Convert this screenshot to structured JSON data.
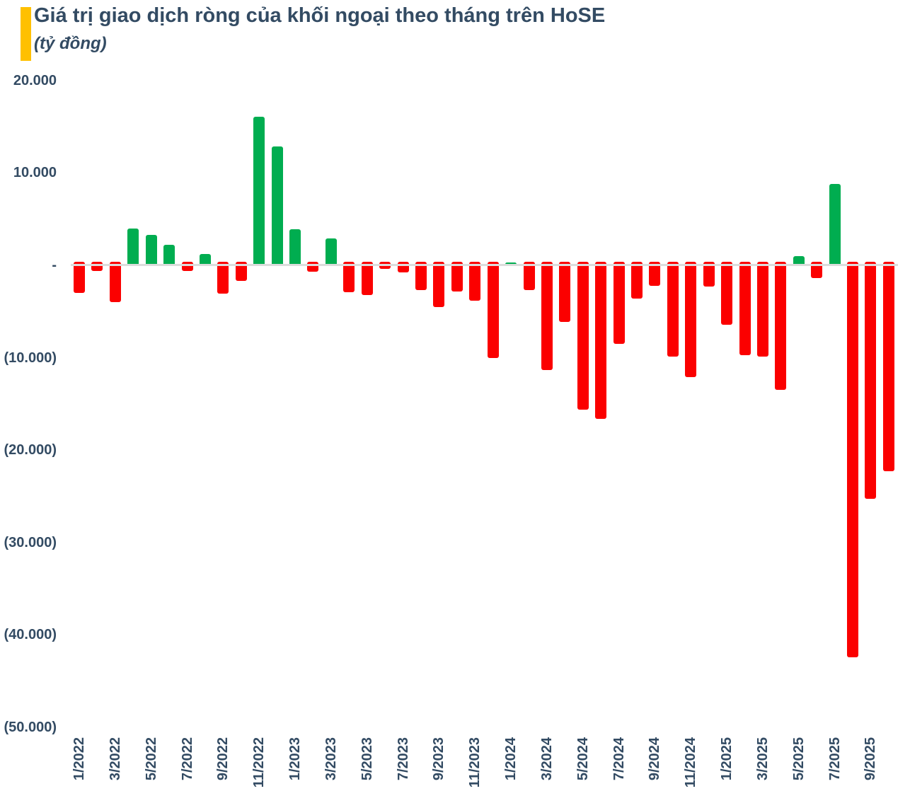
{
  "header": {
    "title": "Giá trị giao dịch ròng của khối ngoại theo tháng trên HoSE",
    "subtitle": "(tỷ đồng)",
    "accent_color": "#FFC000",
    "text_color": "#334B63"
  },
  "chart_data": {
    "type": "bar",
    "title": "Giá trị giao dịch ròng của khối ngoại theo tháng trên HoSE",
    "unit_label": "(tỷ đồng)",
    "categories": [
      "1/2022",
      "2/2022",
      "3/2022",
      "4/2022",
      "5/2022",
      "6/2022",
      "7/2022",
      "8/2022",
      "9/2022",
      "10/2022",
      "11/2022",
      "12/2022",
      "1/2023",
      "2/2023",
      "3/2023",
      "4/2023",
      "5/2023",
      "6/2023",
      "7/2023",
      "8/2023",
      "9/2023",
      "10/2023",
      "11/2023",
      "12/2023",
      "1/2024",
      "2/2024",
      "3/2024",
      "4/2024",
      "5/2024",
      "6/2024",
      "7/2024",
      "8/2024",
      "9/2024",
      "10/2024",
      "11/2024",
      "12/2024",
      "1/2025",
      "2/2025",
      "3/2025",
      "4/2025",
      "5/2025",
      "6/2025",
      "7/2025",
      "8/2025",
      "9/2025",
      "10/2025"
    ],
    "values": [
      -3000,
      -600,
      -4000,
      4000,
      3300,
      2200,
      -600,
      1200,
      -3100,
      -1700,
      16100,
      12900,
      3900,
      -700,
      2900,
      -2900,
      -3200,
      -400,
      -800,
      -2700,
      -4500,
      -2800,
      -3800,
      -10000,
      300,
      -2700,
      -11300,
      -6100,
      -15600,
      -16600,
      -8500,
      -3600,
      -2200,
      -9900,
      -12100,
      -2300,
      -6400,
      -9700,
      -9900,
      -13500,
      1000,
      -1400,
      8800,
      -42400,
      -25300,
      -22300
    ],
    "x_tick_every": 2,
    "x_tick_labels_shown": [
      "1/2022",
      "3/2022",
      "5/2022",
      "7/2022",
      "9/2022",
      "11/2022",
      "1/2023",
      "3/2023",
      "5/2023",
      "7/2023",
      "9/2023",
      "11/2023",
      "1/2024",
      "3/2024",
      "5/2024",
      "7/2024",
      "9/2024",
      "11/2024",
      "1/2025",
      "3/2025",
      "5/2025",
      "7/2025",
      "9/2025"
    ],
    "x_label_rotation_deg": -90,
    "y_ticks": {
      "labels": [
        "20.000",
        "10.000",
        "-",
        "(10.000)",
        "(20.000)",
        "(30.000)",
        "(40.000)",
        "(50.000)"
      ],
      "values": [
        20000,
        10000,
        0,
        -10000,
        -20000,
        -30000,
        -40000,
        -50000
      ]
    },
    "ylim": [
      -50000,
      20000
    ],
    "colors": {
      "positive": "#00AD50",
      "negative": "#FB0000"
    },
    "gridlines": "none",
    "legend": "none",
    "axis_line_color": "#DCDCDC"
  }
}
